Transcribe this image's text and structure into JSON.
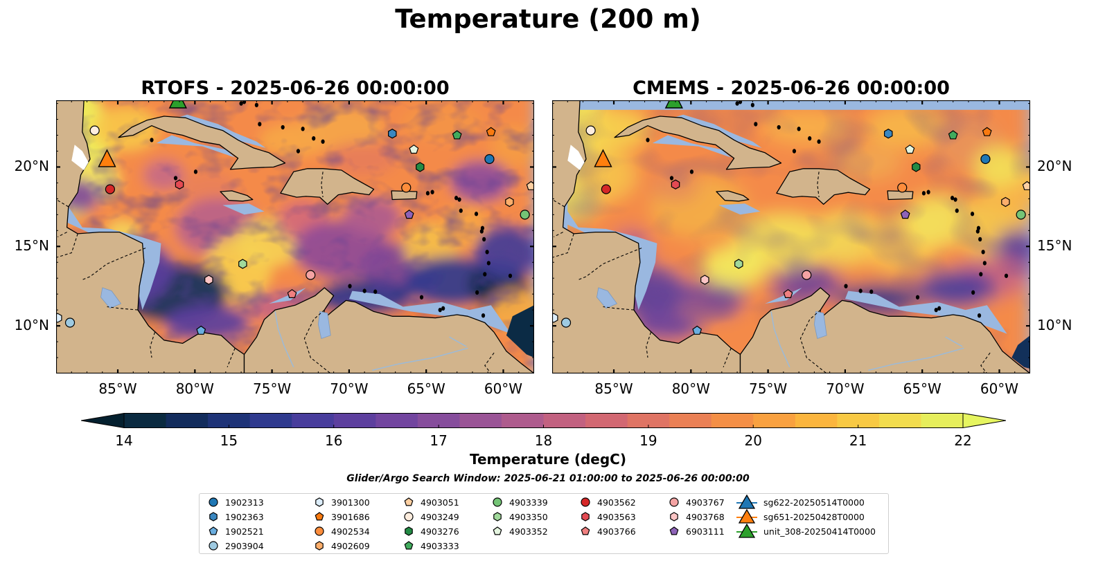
{
  "title": "Temperature (200 m)",
  "colorbar": {
    "label": "Temperature (degC)",
    "min": 14,
    "max": 22,
    "step": 0.5,
    "ticks": [
      "14",
      "15",
      "16",
      "17",
      "18",
      "19",
      "20",
      "21",
      "22"
    ],
    "colors": [
      "#0a2a40",
      "#122c5c",
      "#1e3377",
      "#2f3a8e",
      "#483d9c",
      "#5d3f9e",
      "#72459f",
      "#864d9c",
      "#9a5496",
      "#ae5b8d",
      "#c26180",
      "#d26872",
      "#df7464",
      "#ea8055",
      "#f48f46",
      "#f9a140",
      "#fbb53e",
      "#f8c944",
      "#f2dc4e",
      "#e6ee5c"
    ],
    "under_color": "#04202f",
    "over_color": "#e6f560"
  },
  "search_window": "Glider/Argo Search Window: 2025-06-21 01:00:00 to 2025-06-26 00:00:00",
  "panels": [
    {
      "title": "RTOFS - 2025-06-26 00:00:00"
    },
    {
      "title": "CMEMS - 2025-06-26 00:00:00"
    }
  ],
  "chart_data": {
    "type": "map",
    "xlim": [
      -89,
      -58
    ],
    "ylim": [
      7,
      24.2
    ],
    "x_ticks": [
      -85,
      -80,
      -75,
      -70,
      -65,
      -60
    ],
    "x_tick_labels": [
      "85°W",
      "80°W",
      "75°W",
      "70°W",
      "65°W",
      "60°W"
    ],
    "y_ticks": [
      10,
      15,
      20
    ],
    "y_tick_labels": [
      "10°N",
      "15°N",
      "20°N"
    ],
    "profilers": [
      {
        "id": "1902313",
        "marker": "circle",
        "color": "#1f77b4",
        "lon": -60.9,
        "lat": 20.5
      },
      {
        "id": "1902363",
        "marker": "hexagon",
        "color": "#3a87c0",
        "lon": -67.2,
        "lat": 22.1
      },
      {
        "id": "1902521",
        "marker": "pentagon",
        "color": "#6aaee0",
        "lon": -79.6,
        "lat": 9.7
      },
      {
        "id": "2903904",
        "marker": "circle",
        "color": "#9ecae1",
        "lon": -88.1,
        "lat": 10.2
      },
      {
        "id": "3901300",
        "marker": "hexagon",
        "color": "#ddeefb",
        "lon": -88.9,
        "lat": 10.5
      },
      {
        "id": "3901686",
        "marker": "pentagon",
        "color": "#f97a10",
        "lon": -60.8,
        "lat": 22.2
      },
      {
        "id": "4902534",
        "marker": "circle",
        "color": "#fd8d3c",
        "lon": -66.3,
        "lat": 18.7
      },
      {
        "id": "4902609",
        "marker": "hexagon",
        "color": "#fdae6b",
        "lon": -59.6,
        "lat": 17.8
      },
      {
        "id": "4903051",
        "marker": "pentagon",
        "color": "#fdd0a2",
        "lon": -58.2,
        "lat": 18.8
      },
      {
        "id": "4903249",
        "marker": "circle",
        "color": "#feedde",
        "lon": -86.5,
        "lat": 22.3
      },
      {
        "id": "4903276",
        "marker": "hexagon",
        "color": "#238b45",
        "lon": -65.4,
        "lat": 20.0
      },
      {
        "id": "4903333",
        "marker": "pentagon",
        "color": "#41ab5d",
        "lon": -63.0,
        "lat": 22.0
      },
      {
        "id": "4903339",
        "marker": "circle",
        "color": "#74c476",
        "lon": -58.6,
        "lat": 17.0
      },
      {
        "id": "4903350",
        "marker": "hexagon",
        "color": "#a1d99b",
        "lon": -76.9,
        "lat": 13.9
      },
      {
        "id": "4903352",
        "marker": "pentagon",
        "color": "#e5f5e0",
        "lon": -65.8,
        "lat": 21.1
      },
      {
        "id": "4903562",
        "marker": "circle",
        "color": "#d62728",
        "lon": -85.5,
        "lat": 18.6
      },
      {
        "id": "4903563",
        "marker": "hexagon",
        "color": "#e34a53",
        "lon": -81.0,
        "lat": 18.9
      },
      {
        "id": "4903766",
        "marker": "pentagon",
        "color": "#f08080",
        "lon": -73.7,
        "lat": 12.0
      },
      {
        "id": "4903767",
        "marker": "circle",
        "color": "#f4a3a3",
        "lon": -72.5,
        "lat": 13.2
      },
      {
        "id": "4903768",
        "marker": "hexagon",
        "color": "#fcc5c5",
        "lon": -79.1,
        "lat": 12.9
      },
      {
        "id": "6903111",
        "marker": "pentagon",
        "color": "#8e63b8",
        "lon": -66.1,
        "lat": 17.0
      }
    ],
    "gliders": [
      {
        "id": "sg622-20250514T0000",
        "color": "#1f77b4",
        "lon": null,
        "lat": null
      },
      {
        "id": "sg651-20250428T0000",
        "color": "#ff7f0e",
        "lon": -85.7,
        "lat": 20.5
      },
      {
        "id": "unit_308-20250414T0000",
        "color": "#2ca02c",
        "lon": -81.1,
        "lat": 24.2
      }
    ]
  }
}
